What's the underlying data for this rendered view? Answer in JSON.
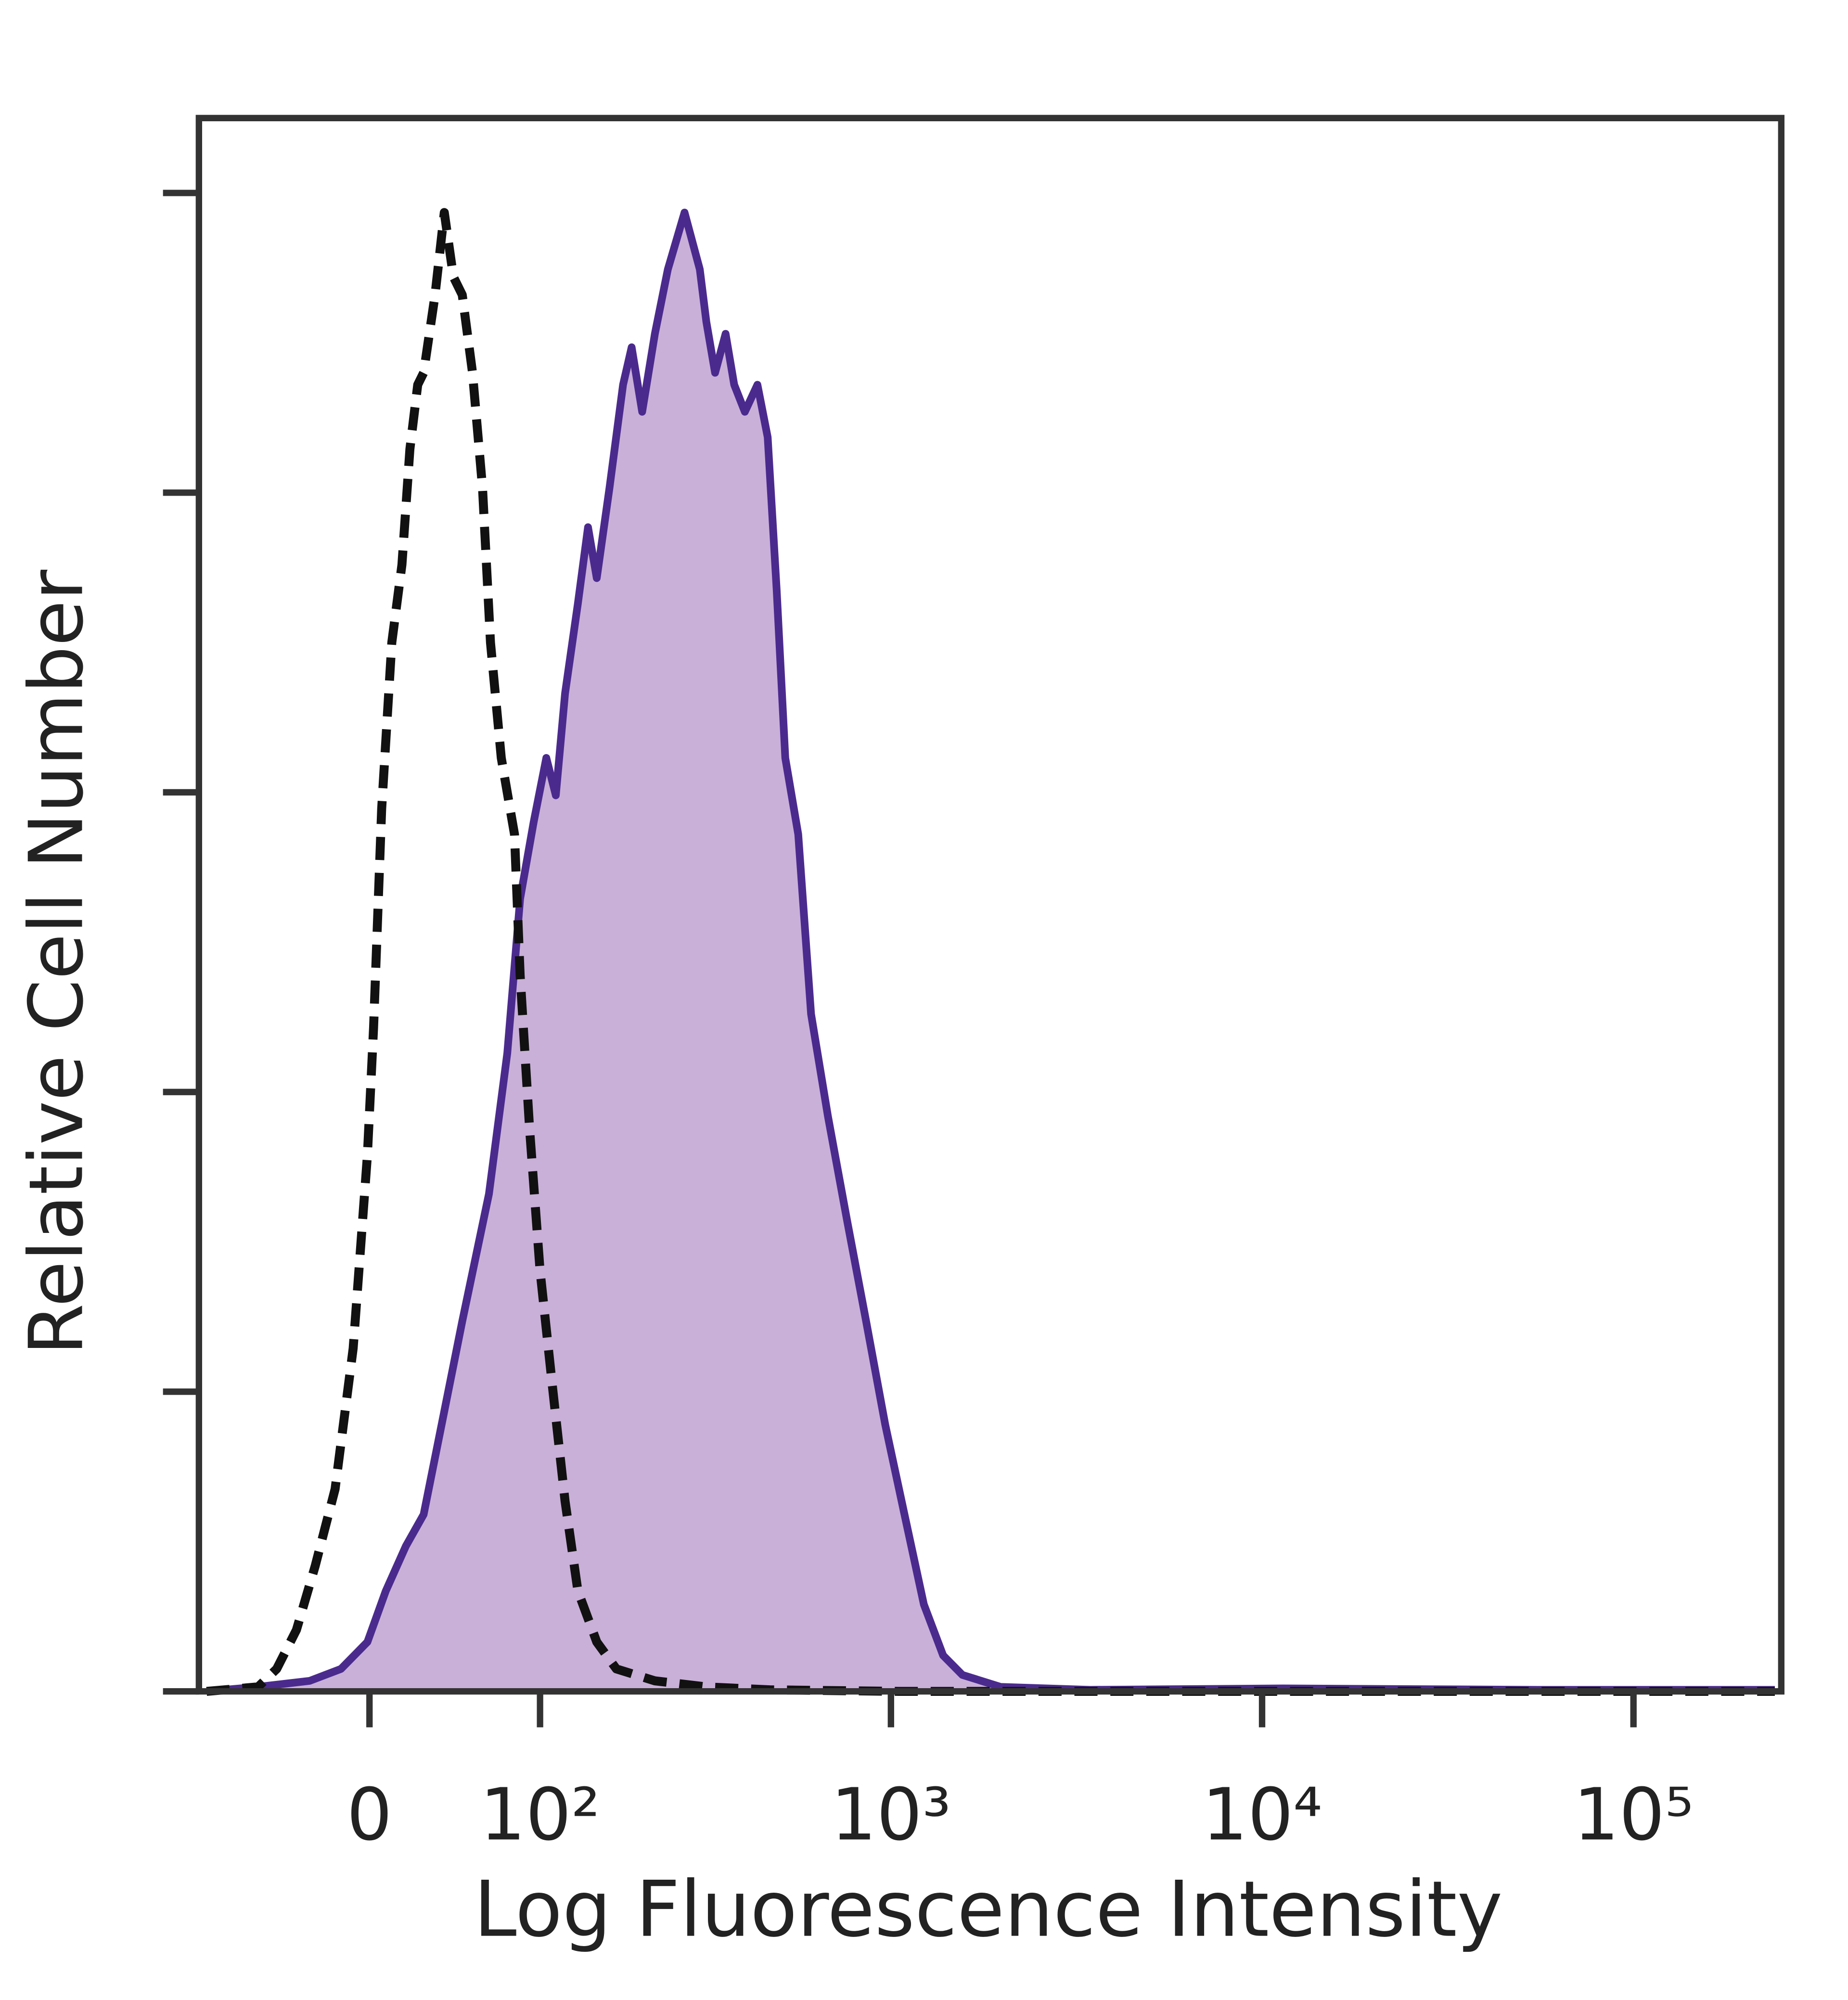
{
  "chart_data": {
    "type": "histogram-overlay",
    "x_label": "Log Fluorescence Intensity",
    "y_label": "Relative Cell Number",
    "xscale": "biexponential",
    "xlim": [
      -100,
      250000
    ],
    "xticks": [
      0,
      {
        "value": 100,
        "label": "10²"
      },
      {
        "value": 1000,
        "label": "10³"
      },
      {
        "value": 10000,
        "label": "10⁴"
      },
      {
        "value": 100000,
        "label": "10⁵"
      }
    ],
    "ylim": [
      0,
      105
    ],
    "yticks": [
      0,
      20,
      40,
      60,
      80,
      100
    ],
    "series": [
      {
        "color": "#4b2a8e",
        "fill": "#c9b0d8",
        "style": "solid",
        "x": [
          -94,
          -59,
          -30,
          -14,
          -1,
          8,
          18,
          27,
          38,
          48,
          64,
          76,
          85,
          95,
          105,
          113,
          121,
          133,
          143,
          152,
          166,
          182,
          193,
          207,
          225,
          245,
          273,
          301,
          314,
          332,
          355,
          375,
          401,
          434,
          463,
          490,
          517,
          561,
          608,
          675,
          760,
          857,
          965,
          1088,
          1227,
          1383,
          1558,
          1976,
          3444,
          11340,
          55400,
          240300
        ],
        "values": [
          0,
          0.3,
          0.7,
          1.5,
          3.3,
          6.7,
          9.7,
          11.8,
          18.7,
          24.7,
          33.2,
          42.6,
          52.9,
          58.0,
          62.3,
          59.8,
          66.6,
          72.6,
          77.7,
          74.3,
          80.3,
          87.2,
          89.7,
          85.4,
          90.6,
          94.9,
          98.7,
          94.9,
          91.4,
          88.0,
          90.6,
          87.2,
          85.4,
          87.2,
          83.7,
          73.5,
          62.3,
          57.2,
          45.2,
          38.4,
          31.5,
          24.7,
          17.8,
          11.8,
          5.8,
          2.4,
          1.1,
          0.3,
          0.1,
          0.2,
          0.1,
          0.1
        ]
      },
      {
        "color": "#111111",
        "style": "dashed",
        "x": [
          -94,
          -59,
          -48,
          -37,
          -27,
          -17,
          -8,
          -1,
          2,
          6,
          11,
          16,
          20,
          24,
          27,
          33,
          38,
          43,
          48,
          54,
          60,
          65,
          72,
          81,
          85,
          92,
          100,
          110,
          121,
          133,
          152,
          174,
          225,
          314,
          470,
          1046,
          11340,
          240300
        ],
        "values": [
          0,
          0.3,
          1.5,
          4.1,
          8.4,
          13.5,
          22.9,
          35.8,
          44.3,
          58.9,
          70.0,
          75.2,
          82.9,
          87.2,
          88.0,
          93.2,
          98.7,
          94.4,
          93.2,
          88.0,
          80.3,
          70.0,
          62.3,
          57.2,
          47.8,
          37.5,
          28.1,
          20.4,
          12.7,
          6.7,
          3.3,
          1.5,
          0.7,
          0.3,
          0.1,
          0,
          0,
          0
        ]
      }
    ]
  }
}
